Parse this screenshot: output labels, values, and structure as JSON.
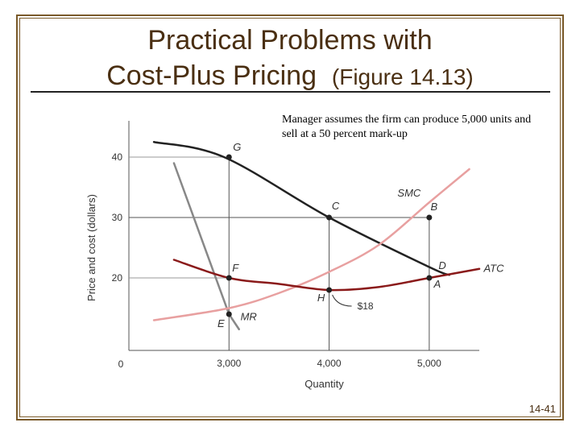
{
  "slide": {
    "title_line1": "Practical Problems with",
    "title_line2": "Cost-Plus Pricing",
    "title_figure": "(Figure 14.13)",
    "annotation": "Manager assumes the firm can produce 5,000 units and sell at a 50 percent mark-up",
    "page_number": "14-41",
    "text_color": "#4a2f12",
    "frame_color": "#7a5a2a"
  },
  "chart_data": {
    "type": "line",
    "title": "",
    "xlabel": "Quantity",
    "ylabel": "Price and cost (dollars)",
    "origin_label": "0",
    "xlim": [
      2000,
      5500
    ],
    "ylim": [
      8,
      46
    ],
    "x_ticks": [
      3000,
      4000,
      5000
    ],
    "x_tick_labels": [
      "3,000",
      "4,000",
      "5,000"
    ],
    "y_ticks": [
      20,
      30,
      40
    ],
    "y_tick_labels": [
      "20",
      "30",
      "40"
    ],
    "grid": false,
    "series": [
      {
        "name": "D",
        "color": "#222222",
        "x": [
          2250,
          2950,
          4000,
          5000,
          5200
        ],
        "y": [
          42.5,
          40,
          30,
          21.8,
          20.5
        ]
      },
      {
        "name": "MR",
        "color": "#888888",
        "x": [
          2450,
          3000,
          3100
        ],
        "y": [
          39,
          14,
          11.5
        ]
      },
      {
        "name": "SMC",
        "color": "#e8a0a0",
        "x": [
          2250,
          3000,
          3500,
          4000,
          4500,
          5000,
          5400
        ],
        "y": [
          13,
          15,
          17.5,
          21,
          25.5,
          32.5,
          38
        ]
      },
      {
        "name": "ATC",
        "color": "#8a1a1a",
        "x": [
          2450,
          3000,
          3500,
          4000,
          4500,
          5000,
          5500
        ],
        "y": [
          23,
          20,
          19,
          18,
          18.5,
          20,
          21.5
        ]
      }
    ],
    "points": [
      {
        "label": "G",
        "x": 3000,
        "y": 40
      },
      {
        "label": "C",
        "x": 4000,
        "y": 30
      },
      {
        "label": "B",
        "x": 5000,
        "y": 30
      },
      {
        "label": "D",
        "x": 5050,
        "y": 21.5
      },
      {
        "label": "F",
        "x": 3000,
        "y": 20
      },
      {
        "label": "H",
        "x": 4000,
        "y": 18
      },
      {
        "label": "A",
        "x": 5000,
        "y": 20
      },
      {
        "label": "E",
        "x": 3000,
        "y": 14
      }
    ],
    "callout": {
      "label": "$18",
      "x": 4000,
      "y": 18
    },
    "series_labels": [
      "SMC",
      "ATC",
      "MR"
    ]
  }
}
